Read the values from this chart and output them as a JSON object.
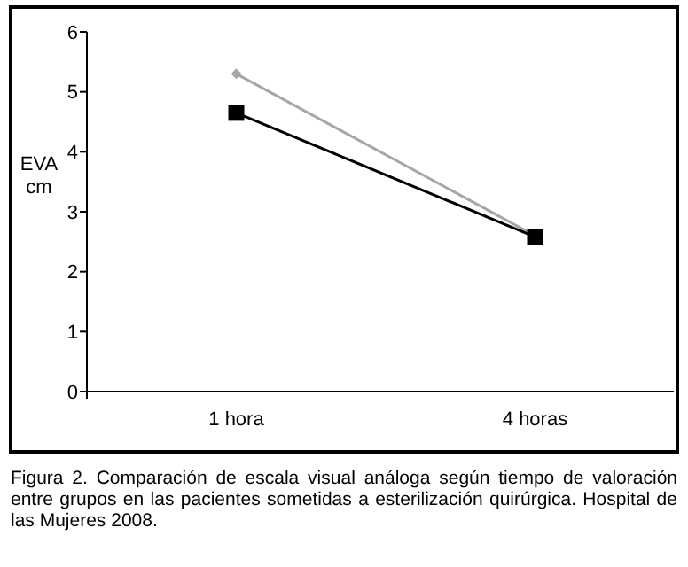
{
  "chart_data": {
    "type": "line",
    "ylabel": "EVA cm",
    "categories": [
      "1 hora",
      "4 horas"
    ],
    "series": [
      {
        "color": "#a6a6a6",
        "values": [
          5.3,
          2.6
        ],
        "marker": "diamond"
      },
      {
        "color": "#000000",
        "values": [
          4.65,
          2.58
        ],
        "marker": "square"
      }
    ],
    "ylim": [
      0,
      6
    ],
    "yticks": [
      0,
      1,
      2,
      3,
      4,
      5,
      6
    ],
    "grid": false,
    "annotations": [
      "Figura 2. Comparación de escala visual análoga según tiempo de valoración entre grupos en las pacientes sometidas a esterilización quirúrgica. Hospital de las Mujeres 2008."
    ]
  }
}
